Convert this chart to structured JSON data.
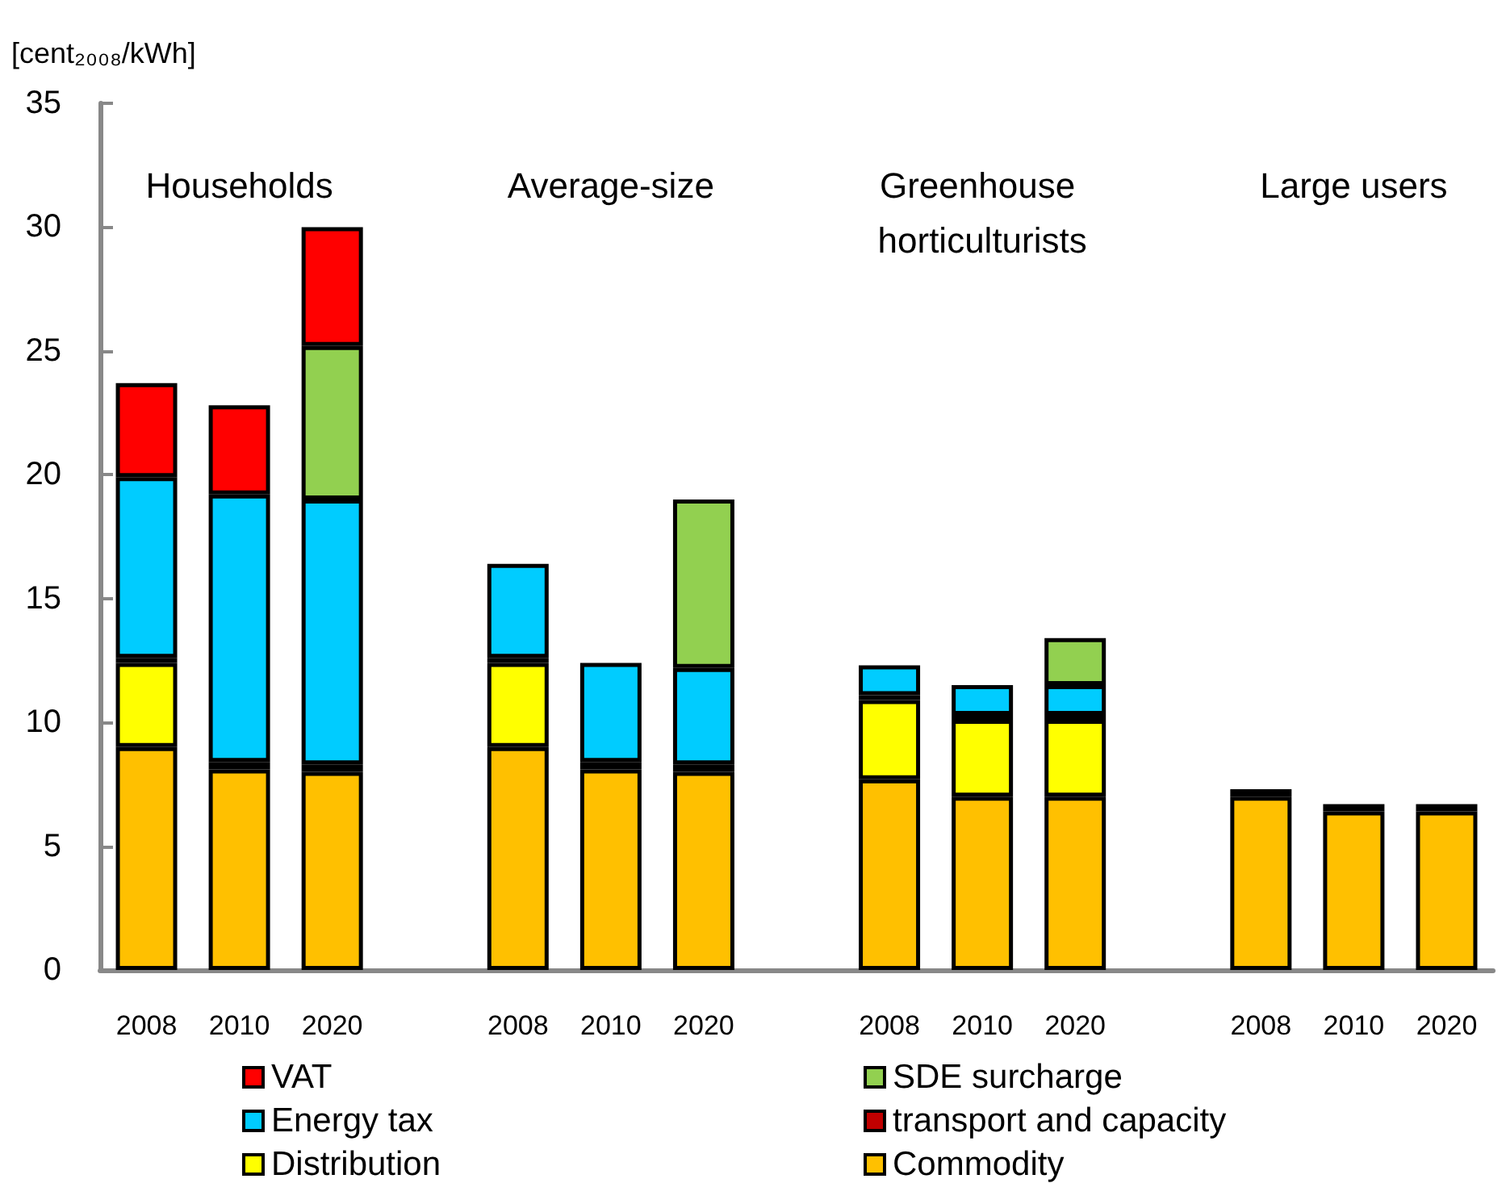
{
  "chart_data": {
    "type": "bar",
    "stacked": true,
    "ylabel": "[cent₂₀₀₈/kWh]",
    "categories": [
      "2008",
      "2010",
      "2020",
      null,
      "2008",
      "2010",
      "2020",
      null,
      "2008",
      "2010",
      "2020",
      null,
      "2008",
      "2010",
      "2020"
    ],
    "series": [
      {
        "name": "Commodity",
        "color": "#ffc000",
        "values": [
          9.0,
          8.1,
          8.0,
          null,
          9.0,
          8.1,
          8.0,
          null,
          7.7,
          7.0,
          7.0,
          null,
          7.0,
          6.4,
          6.4
        ]
      },
      {
        "name": "Distribution",
        "color": "#ffff00",
        "values": [
          3.4,
          null,
          null,
          null,
          3.4,
          null,
          null,
          null,
          3.2,
          3.1,
          3.1,
          null,
          null,
          null,
          null
        ]
      },
      {
        "name": "transport and capacity",
        "color": "#c00000",
        "values": [
          0.2,
          0.3,
          0.3,
          null,
          0.2,
          0.3,
          0.3,
          null,
          0.2,
          0.2,
          0.2,
          null,
          0.3,
          0.3,
          0.3
        ]
      },
      {
        "name": "Energy tax",
        "color": "#00ccff",
        "values": [
          7.3,
          10.8,
          10.7,
          null,
          3.8,
          4.0,
          3.9,
          null,
          1.2,
          1.2,
          1.2,
          null,
          null,
          null,
          null
        ]
      },
      {
        "name": "SDE surcharge",
        "color": "#92d050",
        "values": [
          null,
          null,
          6.2,
          null,
          null,
          null,
          6.8,
          null,
          null,
          null,
          1.9,
          null,
          null,
          null,
          null
        ]
      },
      {
        "name": "VAT",
        "color": "#ff0000",
        "values": [
          3.8,
          3.6,
          4.8,
          null,
          null,
          null,
          null,
          null,
          null,
          null,
          null,
          null,
          null,
          null,
          null
        ]
      }
    ],
    "ylim": [
      0,
      35
    ],
    "yticks": [
      0,
      5,
      10,
      15,
      20,
      25,
      30,
      35
    ],
    "grid": false,
    "legend": "bottom",
    "annotations": [
      "Households",
      "Average-size",
      "Greenhouse horticulturists",
      "Large users"
    ]
  }
}
